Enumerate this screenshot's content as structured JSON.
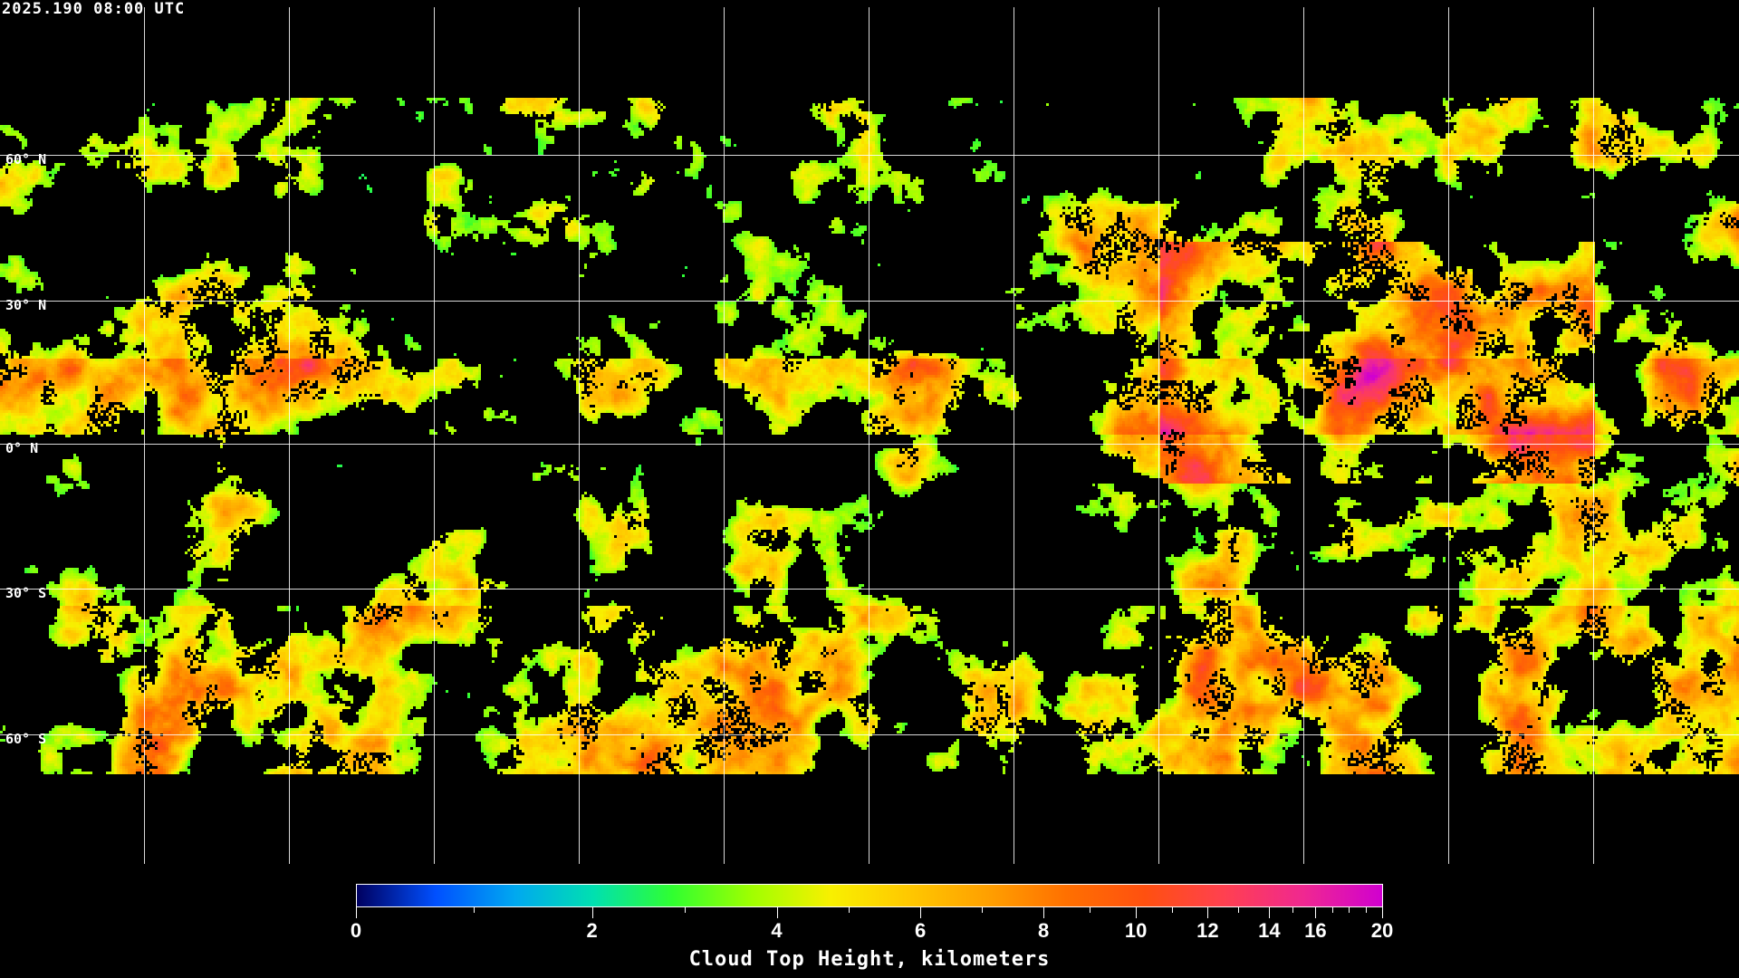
{
  "timestamp": "2025.190 08:00 UTC",
  "map": {
    "latitude_labels": [
      "60° N",
      "30° N",
      "0° N",
      "30° S",
      "60° S"
    ],
    "graticule_spacing_degrees": 30,
    "coastlines_color": "#ffffff",
    "clear_sky_color": "#000000"
  },
  "colorbar": {
    "title": "Cloud Top Height, kilometers",
    "range": [
      0,
      20
    ],
    "tick_labels": [
      "0",
      "2",
      "4",
      "6",
      "8",
      "10",
      "12",
      "14",
      "16",
      "20"
    ],
    "minor_ticks": [
      1,
      3,
      5,
      7,
      9,
      11,
      13,
      15,
      17,
      18,
      19
    ],
    "colors": [
      "#000060",
      "#0050ff",
      "#00a8f0",
      "#00e0b0",
      "#30ff30",
      "#a0ff00",
      "#f8f000",
      "#ffc800",
      "#ffa000",
      "#ff7000",
      "#ff5010",
      "#ff4050",
      "#f02890",
      "#d000d0"
    ]
  }
}
